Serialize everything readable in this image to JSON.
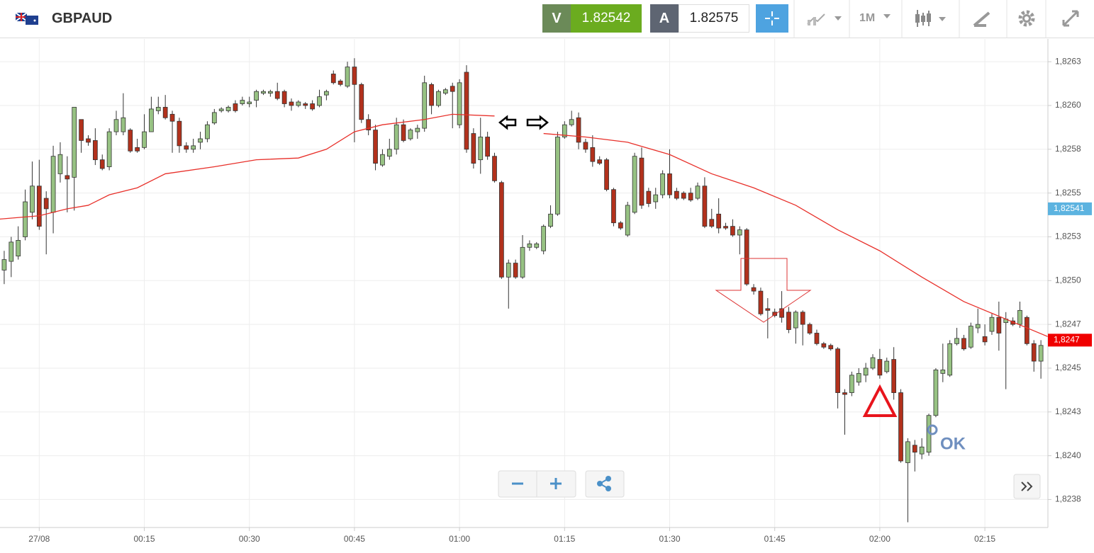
{
  "header": {
    "symbol": "GBPAUD",
    "sell_label": "V",
    "sell_price": "1.82542",
    "buy_label": "A",
    "buy_price": "1.82575",
    "timeframe": "1M"
  },
  "chart_data": {
    "type": "candlestick",
    "up_color": "#97c283",
    "down_color": "#b2311c",
    "grid": true,
    "ylim": [
      1.82359,
      1.82638
    ],
    "yticks": [
      {
        "value": 1.82625,
        "label": "1,8263"
      },
      {
        "value": 1.826,
        "label": "1,8260"
      },
      {
        "value": 1.82575,
        "label": "1,8258"
      },
      {
        "value": 1.8255,
        "label": "1,8255"
      },
      {
        "value": 1.82525,
        "label": "1,8253"
      },
      {
        "value": 1.825,
        "label": "1,8250"
      },
      {
        "value": 1.82475,
        "label": "1,8247"
      },
      {
        "value": 1.8245,
        "label": "1,8245"
      },
      {
        "value": 1.82425,
        "label": "1,8243"
      },
      {
        "value": 1.824,
        "label": "1,8240"
      },
      {
        "value": 1.82375,
        "label": "1,8238"
      }
    ],
    "xlim": [
      -0.6,
      149
    ],
    "xticks": [
      {
        "value": 5,
        "label": "27/08"
      },
      {
        "value": 20,
        "label": "00:15"
      },
      {
        "value": 35,
        "label": "00:30"
      },
      {
        "value": 50,
        "label": "00:45"
      },
      {
        "value": 65,
        "label": "01:00"
      },
      {
        "value": 80,
        "label": "01:15"
      },
      {
        "value": 95,
        "label": "01:30"
      },
      {
        "value": 110,
        "label": "01:45"
      },
      {
        "value": 125,
        "label": "02:00"
      },
      {
        "value": 140,
        "label": "02:15"
      }
    ],
    "ohlc": [
      [
        1.82506,
        1.82517,
        1.82498,
        1.82512
      ],
      [
        1.82511,
        1.82525,
        1.82502,
        1.82522
      ],
      [
        1.82514,
        1.82531,
        1.82512,
        1.82523
      ],
      [
        1.82525,
        1.82552,
        1.82523,
        1.82545
      ],
      [
        1.82539,
        1.82568,
        1.82535,
        1.82554
      ],
      [
        1.82554,
        1.82569,
        1.82529,
        1.82531
      ],
      [
        1.82547,
        1.82551,
        1.82515,
        1.82541
      ],
      [
        1.82539,
        1.82577,
        1.82527,
        1.82571
      ],
      [
        1.82561,
        1.82579,
        1.82556,
        1.82572
      ],
      [
        1.8256,
        1.82571,
        1.82539,
        1.82558
      ],
      [
        1.82559,
        1.82599,
        1.8254,
        1.82599
      ],
      [
        1.82592,
        1.82592,
        1.82573,
        1.8258
      ],
      [
        1.82581,
        1.82583,
        1.82577,
        1.82579
      ],
      [
        1.8258,
        1.82587,
        1.82566,
        1.82569
      ],
      [
        1.82569,
        1.82572,
        1.82563,
        1.82564
      ],
      [
        1.82565,
        1.82587,
        1.82563,
        1.82585
      ],
      [
        1.82585,
        1.82597,
        1.82583,
        1.82592
      ],
      [
        1.82585,
        1.82607,
        1.82583,
        1.82593
      ],
      [
        1.82586,
        1.82587,
        1.82573,
        1.82574
      ],
      [
        1.82576,
        1.82581,
        1.82573,
        1.82574
      ],
      [
        1.82576,
        1.82595,
        1.82575,
        1.82585
      ],
      [
        1.82585,
        1.82605,
        1.82585,
        1.82598
      ],
      [
        1.82597,
        1.82605,
        1.82595,
        1.82599
      ],
      [
        1.82599,
        1.82606,
        1.82592,
        1.82593
      ],
      [
        1.82595,
        1.82597,
        1.82573,
        1.82591
      ],
      [
        1.82591,
        1.82593,
        1.82573,
        1.82577
      ],
      [
        1.82577,
        1.82579,
        1.82573,
        1.82575
      ],
      [
        1.82575,
        1.82581,
        1.82573,
        1.82577
      ],
      [
        1.82579,
        1.82585,
        1.82575,
        1.82581
      ],
      [
        1.82581,
        1.82591,
        1.82579,
        1.82589
      ],
      [
        1.8259,
        1.82598,
        1.82589,
        1.82596
      ],
      [
        1.82597,
        1.82599,
        1.82596,
        1.82598
      ],
      [
        1.82597,
        1.826,
        1.82596,
        1.82599
      ],
      [
        1.82601,
        1.82603,
        1.82596,
        1.82597
      ],
      [
        1.82601,
        1.82605,
        1.826,
        1.82603
      ],
      [
        1.82601,
        1.82605,
        1.82599,
        1.82602
      ],
      [
        1.82603,
        1.82609,
        1.82599,
        1.82608
      ],
      [
        1.82607,
        1.82609,
        1.82606,
        1.82608
      ],
      [
        1.82607,
        1.82609,
        1.82605,
        1.82608
      ],
      [
        1.82608,
        1.82613,
        1.82603,
        1.82604
      ],
      [
        1.82608,
        1.82609,
        1.82599,
        1.82601
      ],
      [
        1.82602,
        1.82604,
        1.82597,
        1.826
      ],
      [
        1.826,
        1.82603,
        1.82599,
        1.82602
      ],
      [
        1.82601,
        1.82602,
        1.82598,
        1.826
      ],
      [
        1.82601,
        1.82603,
        1.82597,
        1.82598
      ],
      [
        1.826,
        1.82609,
        1.82599,
        1.82605
      ],
      [
        1.82606,
        1.82609,
        1.82603,
        1.82608
      ],
      [
        1.82618,
        1.8262,
        1.82612,
        1.82613
      ],
      [
        1.82614,
        1.82615,
        1.82611,
        1.82612
      ],
      [
        1.82611,
        1.82625,
        1.8261,
        1.82622
      ],
      [
        1.82622,
        1.82627,
        1.82579,
        1.82612
      ],
      [
        1.82612,
        1.82613,
        1.8259,
        1.82592
      ],
      [
        1.82592,
        1.82595,
        1.82583,
        1.82586
      ],
      [
        1.82586,
        1.82589,
        1.82563,
        1.82567
      ],
      [
        1.82566,
        1.82575,
        1.82565,
        1.82572
      ],
      [
        1.82571,
        1.82581,
        1.82569,
        1.82575
      ],
      [
        1.82575,
        1.82593,
        1.82572,
        1.82589
      ],
      [
        1.82589,
        1.82592,
        1.82579,
        1.8258
      ],
      [
        1.82581,
        1.82587,
        1.8258,
        1.82586
      ],
      [
        1.82585,
        1.82589,
        1.82581,
        1.82587
      ],
      [
        1.82587,
        1.82617,
        1.82585,
        1.82613
      ],
      [
        1.82612,
        1.82613,
        1.82595,
        1.826
      ],
      [
        1.826,
        1.82609,
        1.82599,
        1.82608
      ],
      [
        1.82607,
        1.8261,
        1.82606,
        1.82609
      ],
      [
        1.82611,
        1.82613,
        1.82587,
        1.82608
      ],
      [
        1.82589,
        1.82615,
        1.82587,
        1.82613
      ],
      [
        1.82619,
        1.82623,
        1.82573,
        1.82575
      ],
      [
        1.82584,
        1.82587,
        1.82564,
        1.82567
      ],
      [
        1.82569,
        1.82593,
        1.82561,
        1.82582
      ],
      [
        1.82582,
        1.82585,
        1.82569,
        1.82571
      ],
      [
        1.82571,
        1.82573,
        1.82556,
        1.82557
      ],
      [
        1.82556,
        1.82557,
        1.82501,
        1.82502
      ],
      [
        1.82502,
        1.82512,
        1.82484,
        1.8251
      ],
      [
        1.8251,
        1.82512,
        1.82501,
        1.82502
      ],
      [
        1.82502,
        1.82526,
        1.82501,
        1.82519
      ],
      [
        1.82519,
        1.82523,
        1.82517,
        1.82521
      ],
      [
        1.82519,
        1.82522,
        1.82518,
        1.82521
      ],
      [
        1.82517,
        1.82532,
        1.82515,
        1.82531
      ],
      [
        1.82531,
        1.82543,
        1.8253,
        1.82538
      ],
      [
        1.82538,
        1.82585,
        1.82537,
        1.82582
      ],
      [
        1.82582,
        1.82591,
        1.82581,
        1.82589
      ],
      [
        1.82589,
        1.82597,
        1.82588,
        1.82592
      ],
      [
        1.82593,
        1.82596,
        1.82575,
        1.82579
      ],
      [
        1.82579,
        1.82581,
        1.82573,
        1.82575
      ],
      [
        1.82576,
        1.82583,
        1.82565,
        1.82568
      ],
      [
        1.82569,
        1.82571,
        1.82566,
        1.82567
      ],
      [
        1.82569,
        1.8257,
        1.82551,
        1.82552
      ],
      [
        1.82552,
        1.82553,
        1.82531,
        1.82533
      ],
      [
        1.82533,
        1.82534,
        1.82529,
        1.8253
      ],
      [
        1.82526,
        1.82545,
        1.82525,
        1.82543
      ],
      [
        1.82539,
        1.82573,
        1.82538,
        1.82571
      ],
      [
        1.8257,
        1.82576,
        1.82541,
        1.82543
      ],
      [
        1.82551,
        1.82553,
        1.82542,
        1.82544
      ],
      [
        1.82545,
        1.82553,
        1.82541,
        1.82549
      ],
      [
        1.82549,
        1.82563,
        1.82547,
        1.82561
      ],
      [
        1.82561,
        1.82575,
        1.82547,
        1.82549
      ],
      [
        1.82551,
        1.82553,
        1.82546,
        1.82547
      ],
      [
        1.8255,
        1.82551,
        1.82546,
        1.82547
      ],
      [
        1.8255,
        1.82553,
        1.82545,
        1.82546
      ],
      [
        1.82547,
        1.82556,
        1.82546,
        1.82554
      ],
      [
        1.82554,
        1.82559,
        1.8253,
        1.82531
      ],
      [
        1.82535,
        1.82541,
        1.8253,
        1.82531
      ],
      [
        1.82538,
        1.82547,
        1.82527,
        1.8253
      ],
      [
        1.82531,
        1.82533,
        1.82529,
        1.8253
      ],
      [
        1.82531,
        1.82535,
        1.82525,
        1.82526
      ],
      [
        1.82526,
        1.82531,
        1.82515,
        1.82529
      ],
      [
        1.82529,
        1.8253,
        1.82497,
        1.82498
      ],
      [
        1.82496,
        1.82498,
        1.82492,
        1.82494
      ],
      [
        1.82494,
        1.82496,
        1.8248,
        1.82481
      ],
      [
        1.82484,
        1.8249,
        1.82467,
        1.82483
      ],
      [
        1.82482,
        1.82484,
        1.82479,
        1.8248
      ],
      [
        1.82484,
        1.82494,
        1.82476,
        1.82479
      ],
      [
        1.82482,
        1.82485,
        1.8247,
        1.82472
      ],
      [
        1.82473,
        1.82483,
        1.82464,
        1.82482
      ],
      [
        1.82482,
        1.82483,
        1.82463,
        1.82475
      ],
      [
        1.82475,
        1.82476,
        1.82469,
        1.8247
      ],
      [
        1.8247,
        1.82472,
        1.82463,
        1.82464
      ],
      [
        1.82464,
        1.82465,
        1.82461,
        1.82462
      ],
      [
        1.82463,
        1.82464,
        1.8246,
        1.82461
      ],
      [
        1.82461,
        1.82462,
        1.82427,
        1.82436
      ],
      [
        1.82436,
        1.82438,
        1.82412,
        1.82435
      ],
      [
        1.82436,
        1.82448,
        1.82434,
        1.82446
      ],
      [
        1.82442,
        1.8245,
        1.8244,
        1.82447
      ],
      [
        1.82446,
        1.82453,
        1.82442,
        1.8245
      ],
      [
        1.8245,
        1.82458,
        1.82449,
        1.82456
      ],
      [
        1.82455,
        1.82461,
        1.82444,
        1.82446
      ],
      [
        1.82448,
        1.82456,
        1.82447,
        1.82454
      ],
      [
        1.82455,
        1.82462,
        1.82432,
        1.82436
      ],
      [
        1.82436,
        1.82438,
        1.82396,
        1.82397
      ],
      [
        1.82396,
        1.8241,
        1.82362,
        1.82408
      ],
      [
        1.82406,
        1.82409,
        1.82391,
        1.82402
      ],
      [
        1.82401,
        1.8241,
        1.82398,
        1.82405
      ],
      [
        1.82402,
        1.82424,
        1.824,
        1.82423
      ],
      [
        1.82423,
        1.8245,
        1.82422,
        1.82449
      ],
      [
        1.82447,
        1.82464,
        1.82442,
        1.82449
      ],
      [
        1.82446,
        1.82466,
        1.82445,
        1.82464
      ],
      [
        1.82464,
        1.82473,
        1.82463,
        1.82467
      ],
      [
        1.82467,
        1.82469,
        1.8246,
        1.82461
      ],
      [
        1.82462,
        1.82476,
        1.82461,
        1.82474
      ],
      [
        1.82473,
        1.82484,
        1.8247,
        1.82475
      ],
      [
        1.82468,
        1.82475,
        1.82463,
        1.82465
      ],
      [
        1.82471,
        1.82481,
        1.82469,
        1.82479
      ],
      [
        1.82479,
        1.82488,
        1.8246,
        1.8247
      ],
      [
        1.82476,
        1.82482,
        1.82438,
        1.82478
      ],
      [
        1.82477,
        1.82479,
        1.82474,
        1.82475
      ],
      [
        1.82475,
        1.82488,
        1.82473,
        1.82483
      ],
      [
        1.82479,
        1.8248,
        1.82463,
        1.82464
      ],
      [
        1.82464,
        1.82466,
        1.82448,
        1.82454
      ],
      [
        1.82454,
        1.82466,
        1.82444,
        1.82463
      ]
    ],
    "moving_average": {
      "color": "#e8302a",
      "x": [
        -1,
        5,
        9,
        12,
        15,
        19,
        23,
        30,
        36,
        42,
        46,
        50,
        54,
        60,
        64,
        70,
        74,
        77,
        83,
        89,
        95,
        101,
        107,
        113,
        119,
        125,
        131,
        137,
        143,
        149
      ],
      "values": [
        1.82535,
        1.82537,
        1.82541,
        1.82543,
        1.82549,
        1.82553,
        1.82561,
        1.82565,
        1.82569,
        1.8257,
        1.82575,
        1.82585,
        1.82589,
        1.82592,
        1.82595,
        1.82594,
        null,
        1.82584,
        1.82582,
        1.82579,
        1.82572,
        1.82561,
        1.82553,
        1.82543,
        1.82529,
        1.82517,
        1.82502,
        1.82488,
        1.82478,
        1.82468
      ]
    },
    "price_labels": [
      {
        "value": 1.82541,
        "label": "1,82541",
        "color": "#5cb3e0"
      },
      {
        "value": 1.82466,
        "label": "1,8247",
        "color": "#f00000"
      }
    ],
    "annotation_text": "OK"
  }
}
